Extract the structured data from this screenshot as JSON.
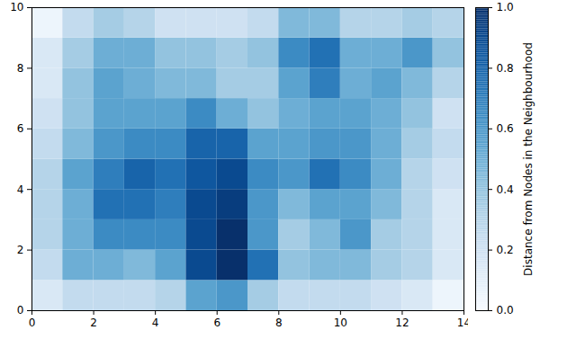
{
  "chart_data": {
    "type": "heatmap",
    "color": "Blues",
    "xlim": [
      0,
      14
    ],
    "ylim": [
      0,
      10
    ],
    "xticks": [
      0,
      2,
      4,
      6,
      8,
      10,
      12,
      14
    ],
    "yticks": [
      0,
      2,
      4,
      6,
      8,
      10
    ],
    "cells": [
      [
        0.15,
        0.25,
        0.25,
        0.25,
        0.3,
        0.55,
        0.6,
        0.35,
        0.25,
        0.25,
        0.25,
        0.2,
        0.15,
        0.05
      ],
      [
        0.25,
        0.5,
        0.5,
        0.45,
        0.55,
        0.9,
        1.0,
        0.75,
        0.4,
        0.45,
        0.45,
        0.35,
        0.3,
        0.15
      ],
      [
        0.3,
        0.5,
        0.65,
        0.65,
        0.65,
        0.9,
        1.0,
        0.6,
        0.35,
        0.45,
        0.6,
        0.35,
        0.3,
        0.15
      ],
      [
        0.3,
        0.5,
        0.75,
        0.75,
        0.7,
        0.9,
        0.95,
        0.6,
        0.45,
        0.55,
        0.55,
        0.45,
        0.3,
        0.15
      ],
      [
        0.3,
        0.55,
        0.7,
        0.8,
        0.75,
        0.85,
        0.9,
        0.65,
        0.6,
        0.75,
        0.65,
        0.5,
        0.3,
        0.2
      ],
      [
        0.25,
        0.45,
        0.6,
        0.65,
        0.65,
        0.8,
        0.8,
        0.55,
        0.55,
        0.6,
        0.6,
        0.5,
        0.35,
        0.25
      ],
      [
        0.2,
        0.4,
        0.55,
        0.55,
        0.55,
        0.65,
        0.5,
        0.4,
        0.5,
        0.55,
        0.55,
        0.5,
        0.4,
        0.2
      ],
      [
        0.15,
        0.4,
        0.55,
        0.5,
        0.45,
        0.45,
        0.35,
        0.35,
        0.55,
        0.7,
        0.5,
        0.55,
        0.45,
        0.3
      ],
      [
        0.15,
        0.35,
        0.5,
        0.5,
        0.4,
        0.4,
        0.35,
        0.4,
        0.65,
        0.75,
        0.5,
        0.5,
        0.6,
        0.4
      ],
      [
        0.05,
        0.25,
        0.35,
        0.3,
        0.2,
        0.2,
        0.2,
        0.25,
        0.45,
        0.45,
        0.3,
        0.3,
        0.35,
        0.3
      ]
    ],
    "color_label": "Distance from Nodes in the Neighbourhood",
    "color_range": [
      0,
      1
    ],
    "color_ticks": [
      {
        "value": 0,
        "label": "0.0"
      },
      {
        "value": 0.2,
        "label": "0.2"
      },
      {
        "value": 0.4,
        "label": "0.4"
      },
      {
        "value": 0.6,
        "label": "0.6"
      },
      {
        "value": 0.8,
        "label": "0.8"
      },
      {
        "value": 1,
        "label": "1.0"
      }
    ]
  }
}
